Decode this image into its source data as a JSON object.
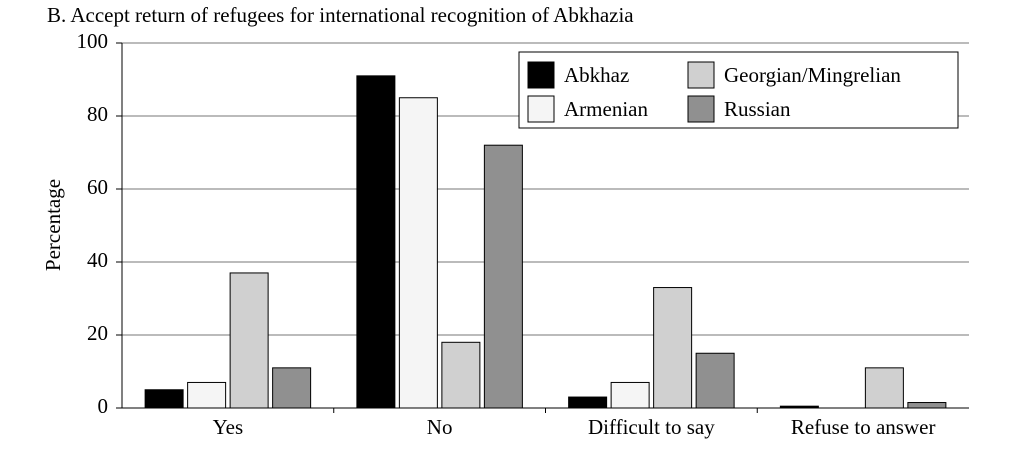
{
  "chart_data": {
    "type": "bar",
    "title": "B. Accept return of refugees for international recognition of Abkhazia",
    "y_label": "Percentage",
    "categories": [
      "Yes",
      "No",
      "Difficult to say",
      "Refuse to answer"
    ],
    "series": [
      {
        "name": "Abkhaz",
        "color": "#000000",
        "values": [
          5,
          91,
          3,
          0.5
        ]
      },
      {
        "name": "Armenian",
        "color": "#f5f5f5",
        "values": [
          7,
          85,
          7,
          0
        ]
      },
      {
        "name": "Georgian/Mingrelian",
        "color": "#d0d0d0",
        "values": [
          37,
          18,
          33,
          11
        ]
      },
      {
        "name": "Russian",
        "color": "#909090",
        "values": [
          11,
          72,
          15,
          1.5
        ]
      }
    ],
    "ylim": [
      0,
      100
    ],
    "yticks": [
      0,
      20,
      40,
      60,
      80,
      100
    ],
    "grid": true,
    "legend": "upper right"
  }
}
